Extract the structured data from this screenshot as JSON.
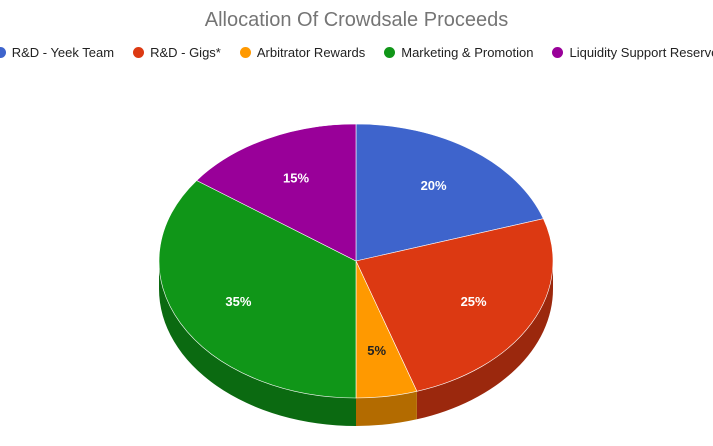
{
  "chart_data": {
    "type": "pie",
    "title": "Allocation Of Crowdsale Proceeds",
    "legend_position": "top",
    "three_d": true,
    "slices": [
      {
        "name": "R&D - Yeek Team",
        "value": 20,
        "label": "20%",
        "color": "#3e64cc",
        "dark": "#2b4690",
        "label_color": "#ffffff"
      },
      {
        "name": "R&D - Gigs*",
        "value": 25,
        "label": "25%",
        "color": "#dc3912",
        "dark": "#9b280d",
        "label_color": "#ffffff"
      },
      {
        "name": "Arbitrator Rewards",
        "value": 5,
        "label": "5%",
        "color": "#ff9900",
        "dark": "#b36b00",
        "label_color": "#222222"
      },
      {
        "name": "Marketing & Promotion",
        "value": 35,
        "label": "35%",
        "color": "#109618",
        "dark": "#0b6a11",
        "label_color": "#ffffff"
      },
      {
        "name": "Liquidity Support Reserve",
        "value": 15,
        "label": "15%",
        "color": "#990099",
        "dark": "#6b006b",
        "label_color": "#ffffff"
      }
    ]
  }
}
